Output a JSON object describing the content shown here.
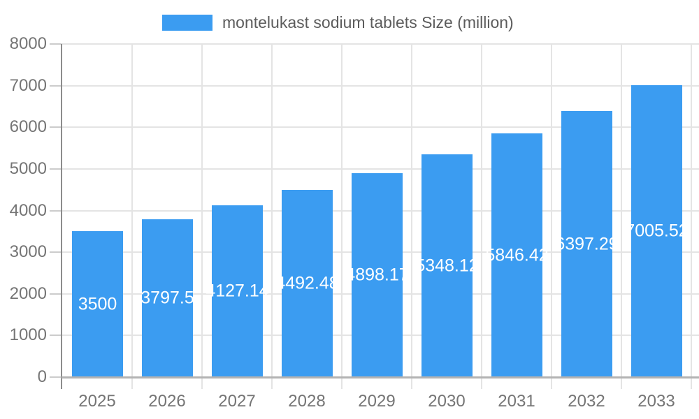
{
  "legend": {
    "label": "montelukast sodium tablets Size (million)"
  },
  "chart_data": {
    "type": "bar",
    "title": "",
    "xlabel": "",
    "ylabel": "",
    "categories": [
      "2025",
      "2026",
      "2027",
      "2028",
      "2029",
      "2030",
      "2031",
      "2032",
      "2033"
    ],
    "series": [
      {
        "name": "montelukast sodium tablets Size (million)",
        "values": [
          3500,
          3797.5,
          4127.14,
          4492.48,
          4898.17,
          5348.12,
          5846.42,
          6397.29,
          7005.52
        ]
      }
    ],
    "value_labels": [
      "3500",
      "3797.5",
      "4127.14",
      "4492.48",
      "4898.17",
      "5348.12",
      "5846.42",
      "6397.29",
      "7005.52"
    ],
    "ylim": [
      0,
      8000
    ],
    "ytick_step": 1000,
    "ytick_labels": [
      "0",
      "1000",
      "2000",
      "3000",
      "4000",
      "5000",
      "6000",
      "7000",
      "8000"
    ],
    "grid": true,
    "legend_position": "top-center",
    "colors": {
      "bar": "#3b9cf1",
      "grid": "#e4e4e4",
      "y_axis": "#8c8c8c",
      "x_axis": "#b3b3b3",
      "tick": "#cccccc",
      "tick_label": "#757575",
      "value_label": "#ffffff",
      "legend_text": "#5c5c5c",
      "background": "#ffffff"
    }
  }
}
